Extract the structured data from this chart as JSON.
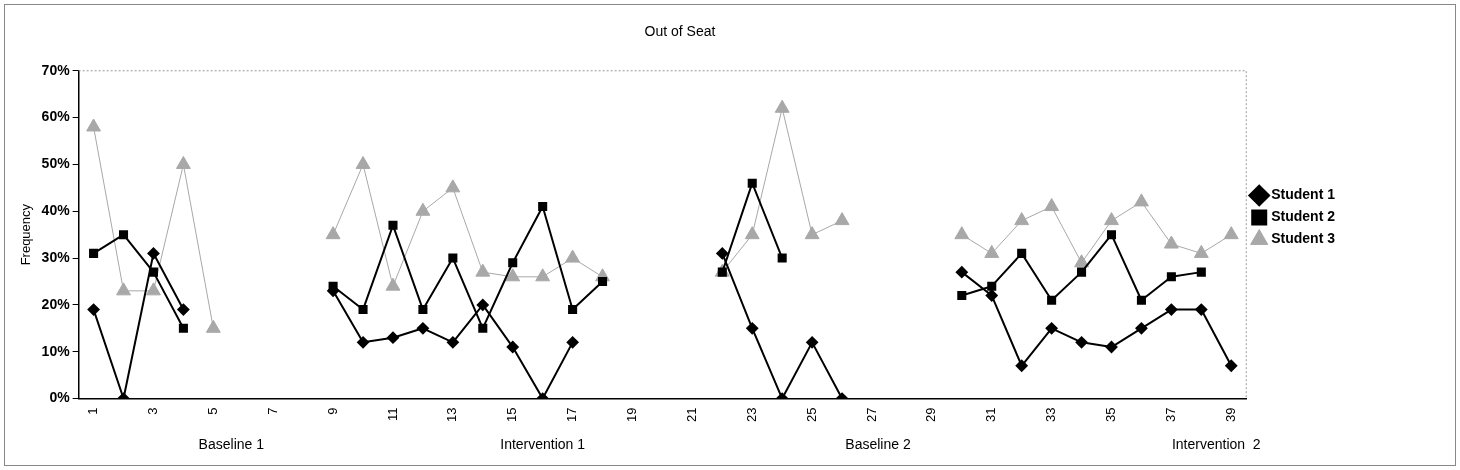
{
  "chart_data": {
    "type": "line",
    "title": "Out of Seat",
    "ylabel": "Frequency",
    "categories": [
      "1",
      null,
      "3",
      null,
      "5",
      null,
      "7",
      null,
      "9",
      null,
      "11",
      null,
      "13",
      null,
      "15",
      null,
      "17",
      null,
      "19",
      null,
      "21",
      null,
      "23",
      null,
      "25",
      null,
      "27",
      null,
      "29",
      null,
      "31",
      null,
      "33",
      null,
      "35",
      null,
      "37",
      null,
      "39"
    ],
    "series": [
      {
        "name": "Student 1",
        "color": "#000000",
        "marker": "diamond",
        "values": [
          19,
          0,
          31,
          19,
          null,
          null,
          null,
          null,
          23,
          12,
          13,
          15,
          12,
          20,
          11,
          0,
          12,
          null,
          null,
          null,
          null,
          31,
          15,
          0,
          12,
          0,
          null,
          null,
          null,
          27,
          22,
          7,
          15,
          12,
          11,
          15,
          19,
          19,
          7
        ]
      },
      {
        "name": "Student 2",
        "color": "#000000",
        "marker": "square",
        "values": [
          31,
          35,
          27,
          15,
          null,
          null,
          null,
          null,
          24,
          19,
          37,
          19,
          30,
          15,
          29,
          41,
          19,
          25,
          null,
          null,
          null,
          27,
          46,
          30,
          null,
          null,
          null,
          null,
          null,
          22,
          24,
          31,
          21,
          27,
          35,
          21,
          26,
          27,
          null
        ]
      },
      {
        "name": "Student 3",
        "color": "#a8a8a8",
        "marker": "triangle",
        "values": [
          58,
          23,
          23,
          50,
          15,
          null,
          null,
          null,
          35,
          50,
          24,
          40,
          45,
          27,
          26,
          26,
          30,
          26,
          null,
          null,
          null,
          27,
          35,
          62,
          35,
          38,
          null,
          null,
          null,
          35,
          31,
          38,
          41,
          29,
          38,
          42,
          33,
          31,
          35
        ]
      }
    ],
    "ylim": [
      0,
      70
    ],
    "yticks": [
      {
        "value": 0,
        "label": "0%"
      },
      {
        "value": 10,
        "label": "10%"
      },
      {
        "value": 20,
        "label": "20%"
      },
      {
        "value": 30,
        "label": "30%"
      },
      {
        "value": 40,
        "label": "40%"
      },
      {
        "value": 50,
        "label": "50%"
      },
      {
        "value": 60,
        "label": "60%"
      },
      {
        "value": 70,
        "label": "70%"
      }
    ],
    "grid": false,
    "legend": "right",
    "annotations": [
      "Baseline 1",
      "Intervention 1",
      "Baseline 2",
      "Intervention  2"
    ]
  }
}
